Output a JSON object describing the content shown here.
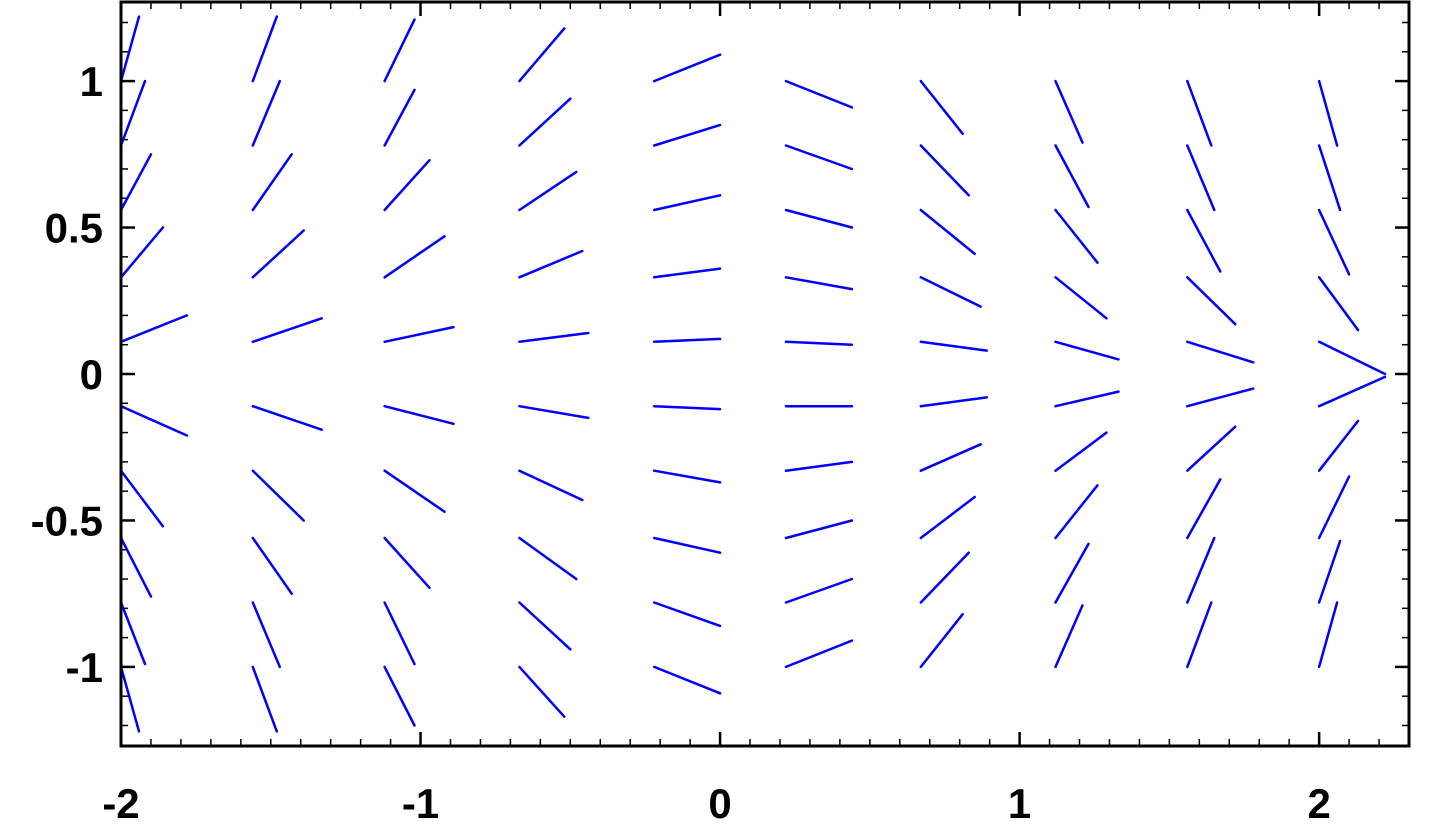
{
  "chart_data": {
    "type": "vector-field",
    "title": "",
    "xlabel": "",
    "ylabel": "",
    "xlim": [
      -2,
      2.3
    ],
    "ylim": [
      -1.27,
      1.27
    ],
    "grid": false,
    "x_ticks": [
      -2,
      -1,
      0,
      1,
      2
    ],
    "x_tick_labels": [
      "-2",
      "-1",
      "0",
      "1",
      "2"
    ],
    "y_ticks": [
      -1,
      -0.5,
      0,
      0.5,
      1
    ],
    "y_tick_labels": [
      "-1",
      "-0.5",
      "0",
      "0.5",
      "1"
    ],
    "segment_color": "#0000ff",
    "columns_x": [
      -2.0,
      -1.56,
      -1.12,
      -0.67,
      -0.22,
      0.22,
      0.67,
      1.12,
      1.56,
      2.0
    ],
    "rows_y": [
      1.0,
      0.78,
      0.56,
      0.33,
      0.11,
      -0.11,
      -0.33,
      -0.56,
      -0.78,
      -1.0
    ],
    "segments": [
      [
        [
          -2.0,
          1.0,
          -1.94,
          1.22
        ],
        [
          -2.0,
          0.78,
          -1.92,
          1.0
        ],
        [
          -2.0,
          0.56,
          -1.9,
          0.75
        ],
        [
          -2.0,
          0.33,
          -1.86,
          0.5
        ],
        [
          -2.0,
          0.11,
          -1.78,
          0.2
        ],
        [
          -2.0,
          -0.11,
          -1.78,
          -0.21
        ],
        [
          -2.0,
          -0.33,
          -1.86,
          -0.52
        ],
        [
          -2.0,
          -0.56,
          -1.9,
          -0.76
        ],
        [
          -2.0,
          -0.78,
          -1.92,
          -0.99
        ],
        [
          -2.0,
          -1.0,
          -1.94,
          -1.22
        ]
      ],
      [
        [
          -1.56,
          1.0,
          -1.48,
          1.22
        ],
        [
          -1.56,
          0.78,
          -1.47,
          1.0
        ],
        [
          -1.56,
          0.56,
          -1.43,
          0.75
        ],
        [
          -1.56,
          0.33,
          -1.39,
          0.49
        ],
        [
          -1.56,
          0.11,
          -1.33,
          0.19
        ],
        [
          -1.56,
          -0.11,
          -1.33,
          -0.19
        ],
        [
          -1.56,
          -0.33,
          -1.39,
          -0.5
        ],
        [
          -1.56,
          -0.56,
          -1.43,
          -0.75
        ],
        [
          -1.56,
          -0.78,
          -1.47,
          -1.0
        ],
        [
          -1.56,
          -1.0,
          -1.48,
          -1.22
        ]
      ],
      [
        [
          -1.12,
          1.0,
          -1.02,
          1.21
        ],
        [
          -1.12,
          0.78,
          -1.02,
          0.97
        ],
        [
          -1.12,
          0.56,
          -0.97,
          0.73
        ],
        [
          -1.12,
          0.33,
          -0.92,
          0.47
        ],
        [
          -1.12,
          0.11,
          -0.89,
          0.16
        ],
        [
          -1.12,
          -0.11,
          -0.89,
          -0.17
        ],
        [
          -1.12,
          -0.33,
          -0.92,
          -0.47
        ],
        [
          -1.12,
          -0.56,
          -0.97,
          -0.73
        ],
        [
          -1.12,
          -0.78,
          -1.02,
          -0.99
        ],
        [
          -1.12,
          -1.0,
          -1.02,
          -1.2
        ]
      ],
      [
        [
          -0.67,
          1.0,
          -0.52,
          1.18
        ],
        [
          -0.67,
          0.78,
          -0.5,
          0.94
        ],
        [
          -0.67,
          0.56,
          -0.48,
          0.69
        ],
        [
          -0.67,
          0.33,
          -0.46,
          0.42
        ],
        [
          -0.67,
          0.11,
          -0.44,
          0.14
        ],
        [
          -0.67,
          -0.11,
          -0.44,
          -0.15
        ],
        [
          -0.67,
          -0.33,
          -0.46,
          -0.43
        ],
        [
          -0.67,
          -0.56,
          -0.48,
          -0.7
        ],
        [
          -0.67,
          -0.78,
          -0.5,
          -0.94
        ],
        [
          -0.67,
          -1.0,
          -0.52,
          -1.17
        ]
      ],
      [
        [
          -0.22,
          1.0,
          0.0,
          1.09
        ],
        [
          -0.22,
          0.78,
          0.0,
          0.85
        ],
        [
          -0.22,
          0.56,
          0.0,
          0.61
        ],
        [
          -0.22,
          0.33,
          0.0,
          0.36
        ],
        [
          -0.22,
          0.11,
          0.0,
          0.12
        ],
        [
          -0.22,
          -0.11,
          0.0,
          -0.12
        ],
        [
          -0.22,
          -0.33,
          0.0,
          -0.37
        ],
        [
          -0.22,
          -0.56,
          0.0,
          -0.61
        ],
        [
          -0.22,
          -0.78,
          0.0,
          -0.86
        ],
        [
          -0.22,
          -1.0,
          0.0,
          -1.09
        ]
      ],
      [
        [
          0.22,
          1.0,
          0.44,
          0.91
        ],
        [
          0.22,
          0.78,
          0.44,
          0.7
        ],
        [
          0.22,
          0.56,
          0.44,
          0.5
        ],
        [
          0.22,
          0.33,
          0.44,
          0.29
        ],
        [
          0.22,
          0.11,
          0.44,
          0.1
        ],
        [
          0.22,
          -0.11,
          0.44,
          -0.11
        ],
        [
          0.22,
          -0.33,
          0.44,
          -0.3
        ],
        [
          0.22,
          -0.56,
          0.44,
          -0.5
        ],
        [
          0.22,
          -0.78,
          0.44,
          -0.7
        ],
        [
          0.22,
          -1.0,
          0.44,
          -0.91
        ]
      ],
      [
        [
          0.67,
          1.0,
          0.81,
          0.82
        ],
        [
          0.67,
          0.78,
          0.83,
          0.61
        ],
        [
          0.67,
          0.56,
          0.85,
          0.41
        ],
        [
          0.67,
          0.33,
          0.87,
          0.23
        ],
        [
          0.67,
          0.11,
          0.89,
          0.08
        ],
        [
          0.67,
          -0.11,
          0.89,
          -0.08
        ],
        [
          0.67,
          -0.33,
          0.87,
          -0.24
        ],
        [
          0.67,
          -0.56,
          0.85,
          -0.42
        ],
        [
          0.67,
          -0.78,
          0.83,
          -0.61
        ],
        [
          0.67,
          -1.0,
          0.81,
          -0.82
        ]
      ],
      [
        [
          1.12,
          1.0,
          1.21,
          0.79
        ],
        [
          1.12,
          0.78,
          1.23,
          0.57
        ],
        [
          1.12,
          0.56,
          1.26,
          0.38
        ],
        [
          1.12,
          0.33,
          1.29,
          0.19
        ],
        [
          1.12,
          0.11,
          1.33,
          0.05
        ],
        [
          1.12,
          -0.11,
          1.33,
          -0.06
        ],
        [
          1.12,
          -0.33,
          1.29,
          -0.2
        ],
        [
          1.12,
          -0.56,
          1.26,
          -0.38
        ],
        [
          1.12,
          -0.78,
          1.23,
          -0.58
        ],
        [
          1.12,
          -1.0,
          1.21,
          -0.79
        ]
      ],
      [
        [
          1.56,
          1.0,
          1.64,
          0.78
        ],
        [
          1.56,
          0.78,
          1.65,
          0.56
        ],
        [
          1.56,
          0.56,
          1.67,
          0.35
        ],
        [
          1.56,
          0.33,
          1.72,
          0.17
        ],
        [
          1.56,
          0.11,
          1.78,
          0.04
        ],
        [
          1.56,
          -0.11,
          1.78,
          -0.05
        ],
        [
          1.56,
          -0.33,
          1.72,
          -0.18
        ],
        [
          1.56,
          -0.56,
          1.67,
          -0.36
        ],
        [
          1.56,
          -0.78,
          1.65,
          -0.56
        ],
        [
          1.56,
          -1.0,
          1.64,
          -0.78
        ]
      ],
      [
        [
          2.0,
          1.0,
          2.06,
          0.78
        ],
        [
          2.0,
          0.78,
          2.07,
          0.56
        ],
        [
          2.0,
          0.56,
          2.1,
          0.34
        ],
        [
          2.0,
          0.33,
          2.13,
          0.15
        ],
        [
          2.0,
          0.11,
          2.22,
          0.0
        ],
        [
          2.0,
          -0.11,
          2.22,
          -0.01
        ],
        [
          2.0,
          -0.33,
          2.13,
          -0.16
        ],
        [
          2.0,
          -0.56,
          2.1,
          -0.35
        ],
        [
          2.0,
          -0.78,
          2.07,
          -0.57
        ],
        [
          2.0,
          -1.0,
          2.06,
          -0.78
        ]
      ]
    ]
  }
}
